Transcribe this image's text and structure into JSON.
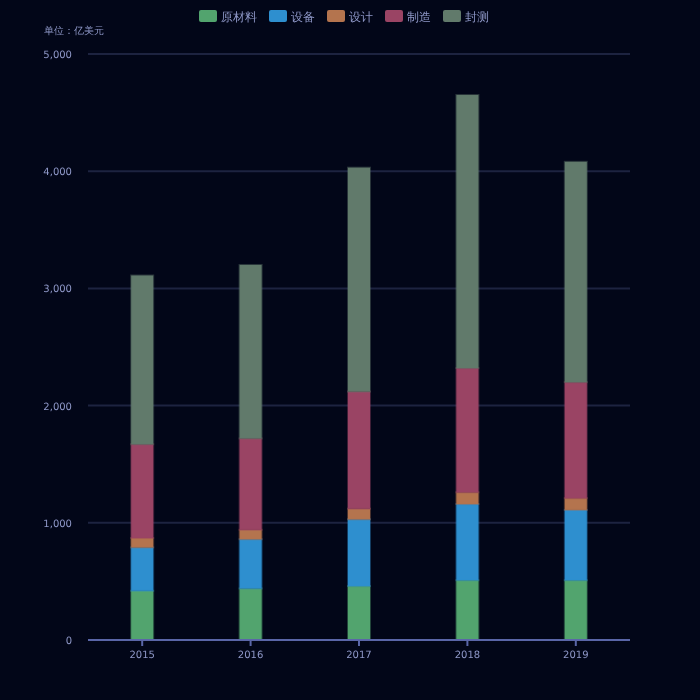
{
  "chart_data": {
    "type": "bar",
    "stacked": true,
    "ylabel": "单位：亿美元",
    "categories": [
      "2015",
      "2016",
      "2017",
      "2018",
      "2019"
    ],
    "series": [
      {
        "name": "原材料",
        "color": "#52a46e",
        "values": [
          420,
          440,
          460,
          510,
          510
        ]
      },
      {
        "name": "设备",
        "color": "#2e8fcf",
        "values": [
          370,
          420,
          570,
          650,
          600
        ]
      },
      {
        "name": "设计",
        "color": "#b4744e",
        "values": [
          80,
          80,
          90,
          100,
          100
        ]
      },
      {
        "name": "制造",
        "color": "#9a4464",
        "values": [
          800,
          780,
          1000,
          1060,
          990
        ]
      },
      {
        "name": "封测",
        "color": "#617a6b",
        "values": [
          1440,
          1480,
          1910,
          2330,
          1880
        ]
      }
    ],
    "ylim": [
      0,
      5000
    ],
    "yticks": [
      {
        "value": 0,
        "label": "0"
      },
      {
        "value": 1000,
        "label": "1,000"
      },
      {
        "value": 2000,
        "label": "2,000"
      },
      {
        "value": 3000,
        "label": "3,000"
      },
      {
        "value": 4000,
        "label": "4,000"
      },
      {
        "value": 5000,
        "label": "5,000"
      }
    ],
    "grid": "y",
    "legend": "top"
  }
}
